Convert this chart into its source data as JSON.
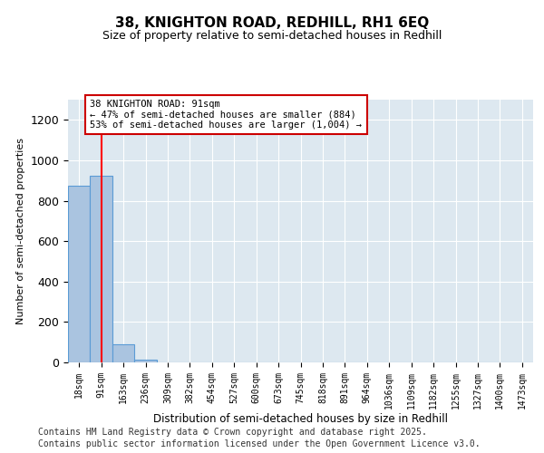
{
  "title": "38, KNIGHTON ROAD, REDHILL, RH1 6EQ",
  "subtitle": "Size of property relative to semi-detached houses in Redhill",
  "xlabel": "Distribution of semi-detached houses by size in Redhill",
  "ylabel": "Number of semi-detached properties",
  "bins": [
    "18sqm",
    "91sqm",
    "163sqm",
    "236sqm",
    "309sqm",
    "382sqm",
    "454sqm",
    "527sqm",
    "600sqm",
    "673sqm",
    "745sqm",
    "818sqm",
    "891sqm",
    "964sqm",
    "1036sqm",
    "1109sqm",
    "1182sqm",
    "1255sqm",
    "1327sqm",
    "1400sqm",
    "1473sqm"
  ],
  "values": [
    875,
    925,
    90,
    15,
    0,
    0,
    0,
    0,
    0,
    0,
    0,
    0,
    0,
    0,
    0,
    0,
    0,
    0,
    0,
    0,
    0
  ],
  "bar_color": "#aac4e0",
  "bar_edge_color": "#5b9bd5",
  "red_line_x": 1,
  "annotation_text": "38 KNIGHTON ROAD: 91sqm\n← 47% of semi-detached houses are smaller (884)\n53% of semi-detached houses are larger (1,004) →",
  "annotation_box_color": "#ffffff",
  "annotation_box_edge": "#cc0000",
  "ylim": [
    0,
    1300
  ],
  "yticks": [
    0,
    200,
    400,
    600,
    800,
    1000,
    1200
  ],
  "background_color": "#dde8f0",
  "footer_line1": "Contains HM Land Registry data © Crown copyright and database right 2025.",
  "footer_line2": "Contains public sector information licensed under the Open Government Licence v3.0."
}
